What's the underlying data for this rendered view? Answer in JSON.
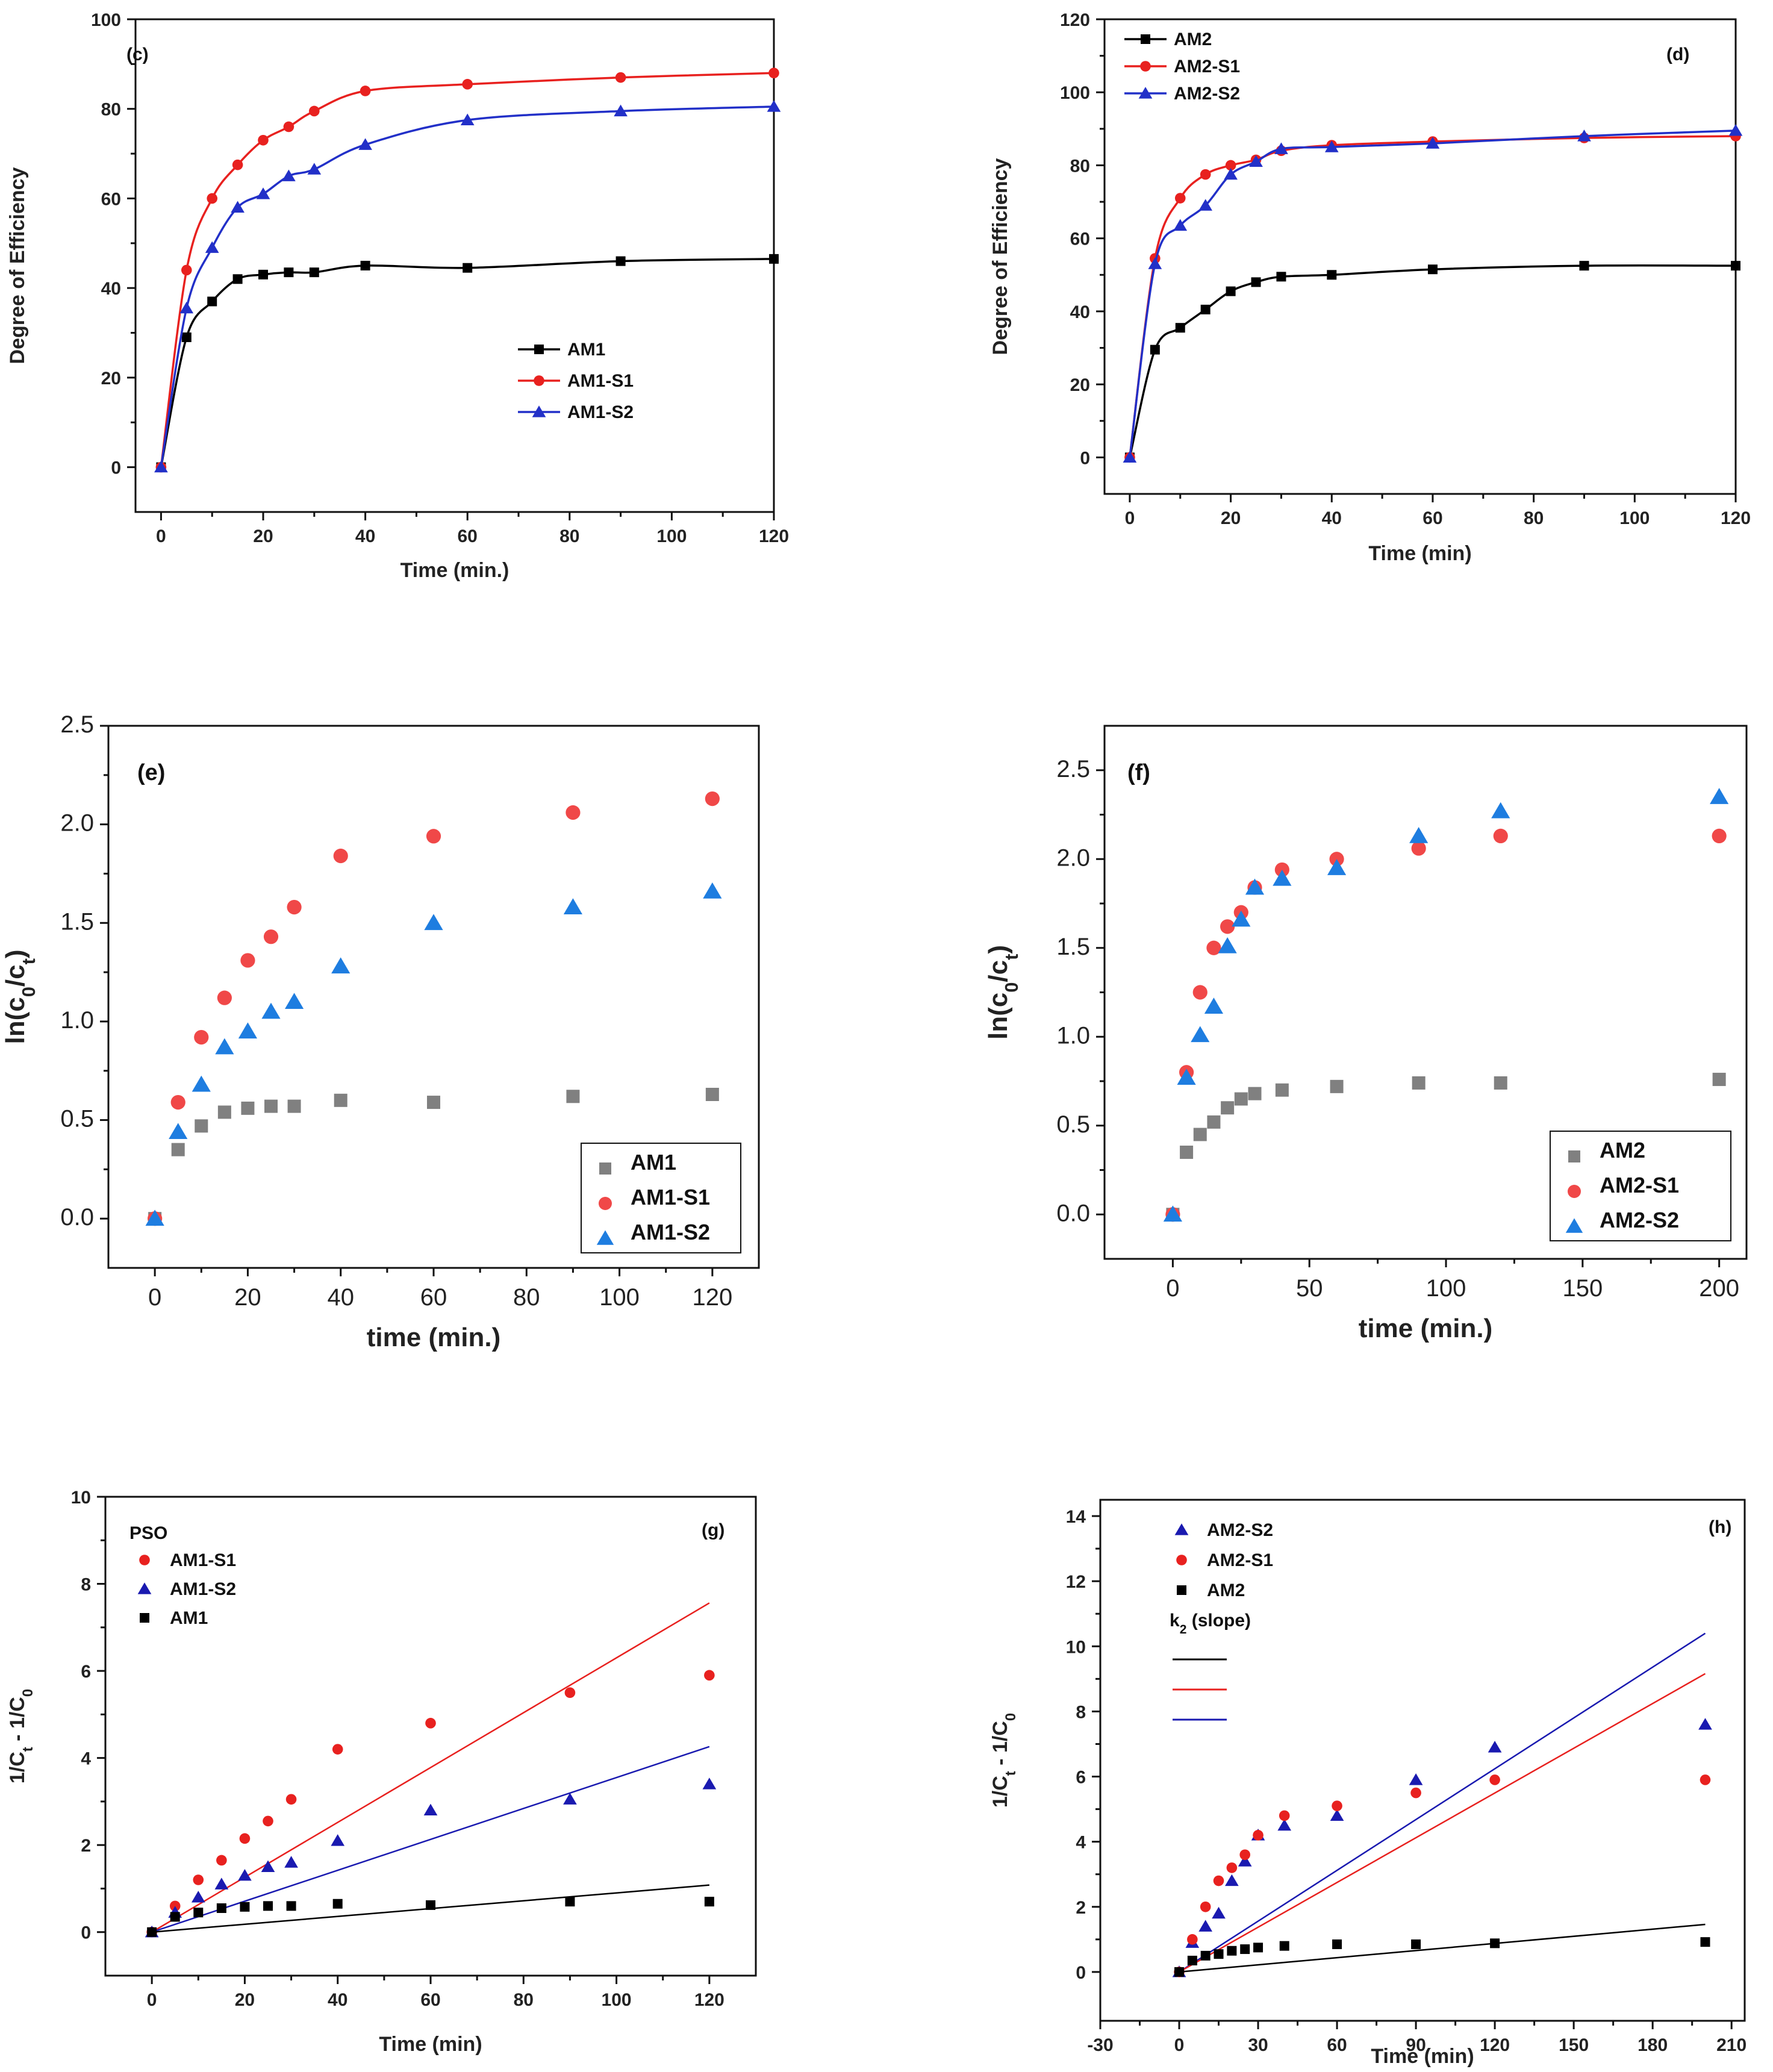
{
  "chart_data": [
    {
      "id": "c",
      "type": "line",
      "panel_label": "(c)",
      "xlabel": "Time (min.)",
      "ylabel": "Degree of Efficiency",
      "xlim": [
        -5,
        120
      ],
      "ylim": [
        -10,
        100
      ],
      "xticks": [
        0,
        20,
        40,
        60,
        80,
        100,
        120
      ],
      "yticks": [
        0,
        20,
        40,
        60,
        80,
        100
      ],
      "style": "line",
      "legend_position": "center-right",
      "x": [
        0,
        5,
        10,
        15,
        20,
        25,
        30,
        40,
        60,
        90,
        120
      ],
      "series": [
        {
          "name": "AM1",
          "color": "#000000",
          "marker": "square",
          "values": [
            0,
            29,
            37,
            42,
            43,
            43.5,
            43.5,
            45,
            44.5,
            46,
            46.5
          ]
        },
        {
          "name": "AM1-S1",
          "color": "#e8211f",
          "marker": "circle",
          "values": [
            0,
            44,
            60,
            67.5,
            73,
            76,
            79.5,
            84,
            85.5,
            87,
            88
          ]
        },
        {
          "name": "AM1-S2",
          "color": "#2230c8",
          "marker": "triangle",
          "values": [
            0,
            35.5,
            49,
            58,
            61,
            65,
            66.5,
            72,
            77.5,
            79.5,
            80.5
          ]
        }
      ]
    },
    {
      "id": "d",
      "type": "line",
      "panel_label": "(d)",
      "xlabel": "Time (min)",
      "ylabel": "Degree of Efficiency",
      "xlim": [
        -5,
        120
      ],
      "ylim": [
        -10,
        120
      ],
      "xticks": [
        0,
        20,
        40,
        60,
        80,
        100,
        120
      ],
      "yticks": [
        0,
        20,
        40,
        60,
        80,
        100,
        120
      ],
      "style": "line",
      "legend_position": "top-left",
      "x": [
        0,
        5,
        10,
        15,
        20,
        25,
        30,
        40,
        60,
        90,
        120
      ],
      "series": [
        {
          "name": "AM2",
          "color": "#000000",
          "marker": "square",
          "values": [
            0,
            29.5,
            35.5,
            40.5,
            45.5,
            48,
            49.5,
            50,
            51.5,
            52.5,
            52.5
          ]
        },
        {
          "name": "AM2-S1",
          "color": "#e8211f",
          "marker": "circle",
          "values": [
            0,
            54.5,
            71,
            77.5,
            80,
            81.5,
            84,
            85.5,
            86.5,
            87.5,
            88
          ]
        },
        {
          "name": "AM2-S2",
          "color": "#2230c8",
          "marker": "triangle",
          "values": [
            0,
            53,
            63.5,
            69,
            77.5,
            81,
            84.5,
            85,
            86,
            88,
            89.5
          ]
        }
      ]
    },
    {
      "id": "e",
      "type": "scatter",
      "panel_label": "(e)",
      "xlabel": "time (min.)",
      "ylabel": "ln(c0/ct)",
      "xlim": [
        -10,
        130
      ],
      "ylim": [
        -0.25,
        2.5
      ],
      "xticks": [
        0,
        20,
        40,
        60,
        80,
        100,
        120
      ],
      "yticks": [
        0.0,
        0.5,
        1.0,
        1.5,
        2.0,
        2.5
      ],
      "ytick_labels": [
        "0.0",
        "0.5",
        "1.0",
        "1.5",
        "2.0",
        "2.5"
      ],
      "style": "scatter",
      "legend_position": "bottom-right",
      "x": [
        0,
        5,
        10,
        15,
        20,
        25,
        30,
        40,
        60,
        90,
        120
      ],
      "series": [
        {
          "name": "AM1",
          "color": "#808080",
          "marker": "square",
          "values": [
            0,
            0.35,
            0.47,
            0.54,
            0.56,
            0.57,
            0.57,
            0.6,
            0.59,
            0.62,
            0.63
          ]
        },
        {
          "name": "AM1-S1",
          "color": "#f04848",
          "marker": "circle",
          "values": [
            0,
            0.59,
            0.92,
            1.12,
            1.31,
            1.43,
            1.58,
            1.84,
            1.94,
            2.06,
            2.13
          ]
        },
        {
          "name": "AM1-S2",
          "color": "#1e7de0",
          "marker": "triangle",
          "values": [
            0,
            0.44,
            0.68,
            0.87,
            0.95,
            1.05,
            1.1,
            1.28,
            1.5,
            1.58,
            1.66
          ]
        }
      ]
    },
    {
      "id": "f",
      "type": "scatter",
      "panel_label": "(f)",
      "xlabel": "time (min.)",
      "ylabel": "ln(c0/ct)",
      "xlim": [
        -25,
        210
      ],
      "ylim": [
        -0.25,
        2.75
      ],
      "xticks": [
        0,
        50,
        100,
        150,
        200
      ],
      "yticks": [
        0.0,
        0.5,
        1.0,
        1.5,
        2.0,
        2.5
      ],
      "ytick_labels": [
        "0.0",
        "0.5",
        "1.0",
        "1.5",
        "2.0",
        "2.5"
      ],
      "style": "scatter",
      "legend_position": "bottom-right",
      "x": [
        0,
        5,
        10,
        15,
        20,
        25,
        30,
        40,
        60,
        90,
        120,
        200
      ],
      "series": [
        {
          "name": "AM2",
          "color": "#808080",
          "marker": "square",
          "values": [
            0,
            0.35,
            0.45,
            0.52,
            0.6,
            0.65,
            0.68,
            0.7,
            0.72,
            0.74,
            0.74,
            0.76
          ]
        },
        {
          "name": "AM2-S1",
          "color": "#f04848",
          "marker": "circle",
          "values": [
            0,
            0.8,
            1.25,
            1.5,
            1.62,
            1.7,
            1.84,
            1.94,
            2.0,
            2.06,
            2.13,
            2.13
          ]
        },
        {
          "name": "AM2-S2",
          "color": "#1e7de0",
          "marker": "triangle",
          "values": [
            0,
            0.77,
            1.01,
            1.17,
            1.51,
            1.66,
            1.84,
            1.89,
            1.95,
            2.13,
            2.27,
            2.35
          ]
        }
      ]
    },
    {
      "id": "g",
      "type": "scatter",
      "panel_label": "(g)",
      "subtitle": "PSO",
      "xlabel": "Time (min)",
      "ylabel": "1/Ct - 1/C0",
      "xlim": [
        -10,
        130
      ],
      "ylim": [
        -1,
        10
      ],
      "xticks": [
        0,
        20,
        40,
        60,
        80,
        100,
        120
      ],
      "yticks": [
        0,
        2,
        4,
        6,
        8,
        10
      ],
      "style": "scatter-fit",
      "legend_position": "top-left",
      "x": [
        0,
        5,
        10,
        15,
        20,
        25,
        30,
        40,
        60,
        90,
        120
      ],
      "series": [
        {
          "name": "AM1-S1",
          "color": "#e8211f",
          "marker": "circle",
          "slope": 0.063,
          "values": [
            0,
            0.6,
            1.2,
            1.65,
            2.15,
            2.55,
            3.05,
            4.2,
            4.8,
            5.5,
            5.9
          ]
        },
        {
          "name": "AM1-S2",
          "color": "#1a1ab0",
          "marker": "triangle",
          "slope": 0.0355,
          "values": [
            0,
            0.45,
            0.8,
            1.1,
            1.3,
            1.5,
            1.6,
            2.1,
            2.8,
            3.05,
            3.4
          ]
        },
        {
          "name": "AM1",
          "color": "#000000",
          "marker": "square",
          "slope": 0.009,
          "values": [
            0,
            0.35,
            0.45,
            0.55,
            0.58,
            0.6,
            0.6,
            0.65,
            0.62,
            0.7,
            0.7
          ]
        }
      ]
    },
    {
      "id": "h",
      "type": "scatter",
      "panel_label": "(h)",
      "xlabel": "Time (min)",
      "ylabel": "1/Ct - 1/C0",
      "xlim": [
        -30,
        215
      ],
      "ylim": [
        -1.5,
        14.5
      ],
      "xticks": [
        -30,
        0,
        30,
        60,
        90,
        120,
        150,
        180,
        210
      ],
      "yticks": [
        0,
        2,
        4,
        6,
        8,
        10,
        12,
        14
      ],
      "style": "scatter-fit",
      "legend_position": "top-left",
      "legend_subtitle": "k2 (slope)",
      "x": [
        0,
        5,
        10,
        15,
        20,
        25,
        30,
        40,
        60,
        90,
        120,
        200
      ],
      "series": [
        {
          "name": "AM2-S2",
          "color": "#1a1ab0",
          "marker": "triangle",
          "slope": 0.052,
          "values": [
            0,
            0.9,
            1.4,
            1.8,
            2.8,
            3.4,
            4.2,
            4.5,
            4.8,
            5.9,
            6.9,
            7.6
          ]
        },
        {
          "name": "AM2-S1",
          "color": "#e8211f",
          "marker": "circle",
          "slope": 0.0458,
          "values": [
            0,
            1.0,
            2.0,
            2.8,
            3.2,
            3.6,
            4.2,
            4.8,
            5.1,
            5.5,
            5.9,
            5.9
          ]
        },
        {
          "name": "AM2",
          "color": "#000000",
          "marker": "square",
          "slope": 0.0073,
          "values": [
            0,
            0.35,
            0.5,
            0.55,
            0.65,
            0.7,
            0.75,
            0.8,
            0.85,
            0.85,
            0.88,
            0.92
          ]
        }
      ]
    }
  ]
}
